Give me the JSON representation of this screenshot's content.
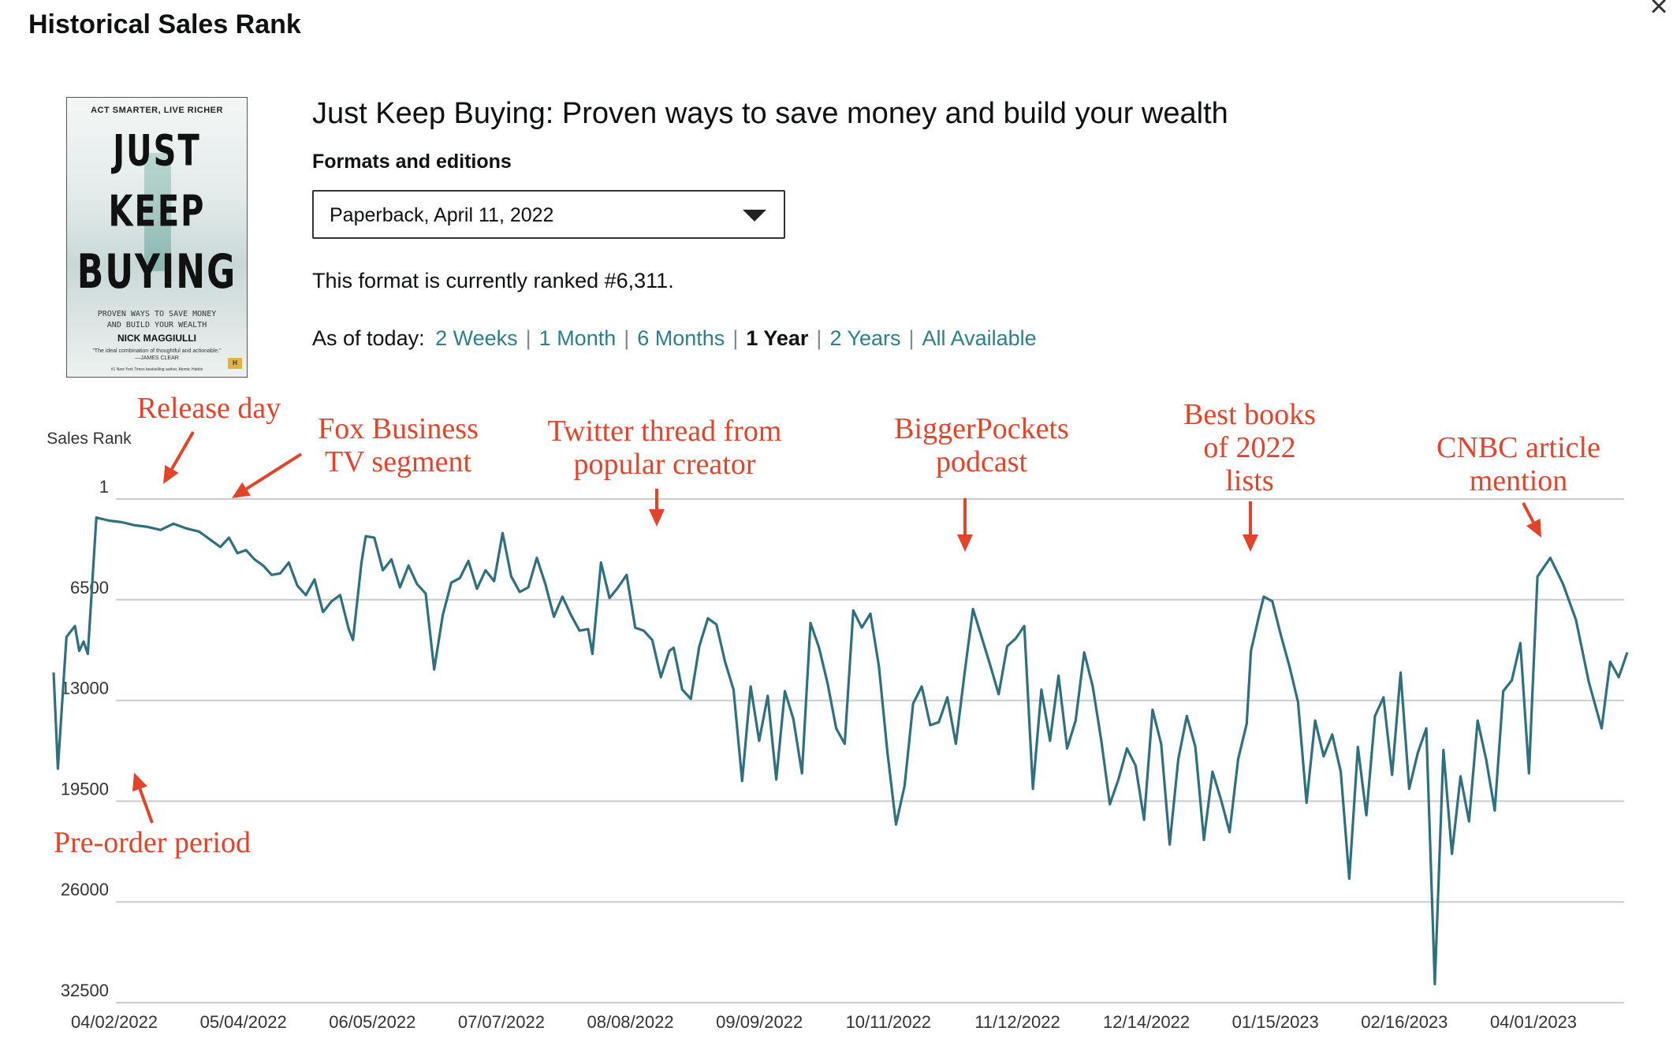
{
  "window": {
    "title": "Historical Sales Rank",
    "close_label": "×"
  },
  "book": {
    "title": "Just Keep Buying: Proven ways to save money and build your wealth",
    "cover": {
      "tagline": "ACT SMARTER, LIVE RICHER",
      "title_line1": "JUST",
      "title_line2": "KEEP",
      "title_line3": "BUYING",
      "subtitle_line1": "PROVEN WAYS TO SAVE MONEY",
      "subtitle_line2": "AND BUILD YOUR WEALTH",
      "author": "NICK MAGGIULLI",
      "quote": "\"The ideal combination of thoughtful and actionable.\"",
      "quote_author": "—JAMES CLEAR",
      "blurb": "#1 New York Times bestselling author, Atomic Habits",
      "logo": "H"
    }
  },
  "formats": {
    "label": "Formats and editions",
    "selected": "Paperback, April 11, 2022"
  },
  "rank_text": "This format is currently ranked #6,311.",
  "time_range": {
    "label": "As of today:",
    "options": [
      "2 Weeks",
      "1 Month",
      "6 Months",
      "1 Year",
      "2 Years",
      "All Available"
    ],
    "active": "1 Year"
  },
  "colors": {
    "line": "#2f6f7e",
    "annotation": "#e0452c",
    "link": "#2e7d8a",
    "grid": "#cccccc"
  },
  "chart_data": {
    "type": "line",
    "title": "",
    "ylabel": "Sales Rank",
    "xlabel": "",
    "y_inverted": true,
    "ylim": [
      1,
      32500
    ],
    "y_ticks": [
      "1",
      "6500",
      "13000",
      "19500",
      "26000",
      "32500"
    ],
    "x_ticks": [
      "04/02/2022",
      "05/04/2022",
      "06/05/2022",
      "07/07/2022",
      "08/08/2022",
      "09/09/2022",
      "10/11/2022",
      "11/12/2022",
      "12/14/2022",
      "01/15/2023",
      "02/16/2023",
      "04/01/2023"
    ],
    "x_range": [
      "2022-04-02",
      "2023-04-05"
    ],
    "grid": true,
    "series": [
      {
        "name": "",
        "points": [
          [
            "2022-04-02",
            11200
          ],
          [
            "2022-04-03",
            17400
          ],
          [
            "2022-04-05",
            8900
          ],
          [
            "2022-04-07",
            8200
          ],
          [
            "2022-04-08",
            9800
          ],
          [
            "2022-04-09",
            9200
          ],
          [
            "2022-04-10",
            10000
          ],
          [
            "2022-04-12",
            1200
          ],
          [
            "2022-04-15",
            1400
          ],
          [
            "2022-04-18",
            1500
          ],
          [
            "2022-04-21",
            1700
          ],
          [
            "2022-04-24",
            1800
          ],
          [
            "2022-04-27",
            2000
          ],
          [
            "2022-04-30",
            1600
          ],
          [
            "2022-05-03",
            1900
          ],
          [
            "2022-05-06",
            2100
          ],
          [
            "2022-05-09",
            2700
          ],
          [
            "2022-05-11",
            3100
          ],
          [
            "2022-05-13",
            2500
          ],
          [
            "2022-05-15",
            3500
          ],
          [
            "2022-05-17",
            3300
          ],
          [
            "2022-05-19",
            3900
          ],
          [
            "2022-05-21",
            4300
          ],
          [
            "2022-05-23",
            4900
          ],
          [
            "2022-05-25",
            4800
          ],
          [
            "2022-05-27",
            4100
          ],
          [
            "2022-05-29",
            5600
          ],
          [
            "2022-05-31",
            6200
          ],
          [
            "2022-06-02",
            5200
          ],
          [
            "2022-06-04",
            7300
          ],
          [
            "2022-06-06",
            6600
          ],
          [
            "2022-06-08",
            6200
          ],
          [
            "2022-06-10",
            8400
          ],
          [
            "2022-06-11",
            9100
          ],
          [
            "2022-06-13",
            4100
          ],
          [
            "2022-06-14",
            2400
          ],
          [
            "2022-06-16",
            2500
          ],
          [
            "2022-06-18",
            4600
          ],
          [
            "2022-06-20",
            3900
          ],
          [
            "2022-06-22",
            5700
          ],
          [
            "2022-06-24",
            4300
          ],
          [
            "2022-06-26",
            5500
          ],
          [
            "2022-06-28",
            6100
          ],
          [
            "2022-06-30",
            11000
          ],
          [
            "2022-07-02",
            7500
          ],
          [
            "2022-07-04",
            5400
          ],
          [
            "2022-07-06",
            5100
          ],
          [
            "2022-07-08",
            4000
          ],
          [
            "2022-07-10",
            5800
          ],
          [
            "2022-07-12",
            4600
          ],
          [
            "2022-07-14",
            5300
          ],
          [
            "2022-07-16",
            2200
          ],
          [
            "2022-07-18",
            5000
          ],
          [
            "2022-07-20",
            6000
          ],
          [
            "2022-07-22",
            5700
          ],
          [
            "2022-07-24",
            3800
          ],
          [
            "2022-07-26",
            5500
          ],
          [
            "2022-07-28",
            7600
          ],
          [
            "2022-07-30",
            6300
          ],
          [
            "2022-08-01",
            7500
          ],
          [
            "2022-08-03",
            8500
          ],
          [
            "2022-08-05",
            8400
          ],
          [
            "2022-08-06",
            10000
          ],
          [
            "2022-08-08",
            4100
          ],
          [
            "2022-08-10",
            6400
          ],
          [
            "2022-08-12",
            5700
          ],
          [
            "2022-08-14",
            4900
          ],
          [
            "2022-08-16",
            8300
          ],
          [
            "2022-08-18",
            8500
          ],
          [
            "2022-08-20",
            9100
          ],
          [
            "2022-08-22",
            11500
          ],
          [
            "2022-08-24",
            9800
          ],
          [
            "2022-08-25",
            9600
          ],
          [
            "2022-08-27",
            12300
          ],
          [
            "2022-08-29",
            12900
          ],
          [
            "2022-08-31",
            9500
          ],
          [
            "2022-09-02",
            7700
          ],
          [
            "2022-09-04",
            8100
          ],
          [
            "2022-09-06",
            10500
          ],
          [
            "2022-09-08",
            12300
          ],
          [
            "2022-09-10",
            18200
          ],
          [
            "2022-09-12",
            12100
          ],
          [
            "2022-09-14",
            15600
          ],
          [
            "2022-09-16",
            12700
          ],
          [
            "2022-09-18",
            18100
          ],
          [
            "2022-09-20",
            12400
          ],
          [
            "2022-09-22",
            14200
          ],
          [
            "2022-09-24",
            17700
          ],
          [
            "2022-09-26",
            8000
          ],
          [
            "2022-09-28",
            9600
          ],
          [
            "2022-09-30",
            11900
          ],
          [
            "2022-10-02",
            14800
          ],
          [
            "2022-10-04",
            15800
          ],
          [
            "2022-10-06",
            7200
          ],
          [
            "2022-10-08",
            8300
          ],
          [
            "2022-10-10",
            7400
          ],
          [
            "2022-10-12",
            10800
          ],
          [
            "2022-10-14",
            16400
          ],
          [
            "2022-10-16",
            21000
          ],
          [
            "2022-10-18",
            18500
          ],
          [
            "2022-10-20",
            13200
          ],
          [
            "2022-10-22",
            12100
          ],
          [
            "2022-10-24",
            14600
          ],
          [
            "2022-10-26",
            14400
          ],
          [
            "2022-10-28",
            12800
          ],
          [
            "2022-10-30",
            15800
          ],
          [
            "2022-11-01",
            11300
          ],
          [
            "2022-11-03",
            7100
          ],
          [
            "2022-11-05",
            8900
          ],
          [
            "2022-11-07",
            10700
          ],
          [
            "2022-11-09",
            12600
          ],
          [
            "2022-11-11",
            9500
          ],
          [
            "2022-11-13",
            9000
          ],
          [
            "2022-11-15",
            8200
          ],
          [
            "2022-11-17",
            18700
          ],
          [
            "2022-11-19",
            12300
          ],
          [
            "2022-11-21",
            15600
          ],
          [
            "2022-11-23",
            11400
          ],
          [
            "2022-11-25",
            16100
          ],
          [
            "2022-11-27",
            14300
          ],
          [
            "2022-11-29",
            9900
          ],
          [
            "2022-12-01",
            12100
          ],
          [
            "2022-12-03",
            15600
          ],
          [
            "2022-12-05",
            19700
          ],
          [
            "2022-12-07",
            18100
          ],
          [
            "2022-12-09",
            16100
          ],
          [
            "2022-12-11",
            17200
          ],
          [
            "2022-12-13",
            20700
          ],
          [
            "2022-12-15",
            13600
          ],
          [
            "2022-12-17",
            15800
          ],
          [
            "2022-12-19",
            22300
          ],
          [
            "2022-12-21",
            16800
          ],
          [
            "2022-12-23",
            14000
          ],
          [
            "2022-12-25",
            16000
          ],
          [
            "2022-12-27",
            22000
          ],
          [
            "2022-12-29",
            17600
          ],
          [
            "2022-12-31",
            19400
          ],
          [
            "2023-01-02",
            21500
          ],
          [
            "2023-01-04",
            16800
          ],
          [
            "2023-01-06",
            14500
          ],
          [
            "2023-01-07",
            9800
          ],
          [
            "2023-01-09",
            7400
          ],
          [
            "2023-01-10",
            6300
          ],
          [
            "2023-01-12",
            6600
          ],
          [
            "2023-01-14",
            8800
          ],
          [
            "2023-01-16",
            10800
          ],
          [
            "2023-01-18",
            13100
          ],
          [
            "2023-01-20",
            19600
          ],
          [
            "2023-01-22",
            14300
          ],
          [
            "2023-01-24",
            16600
          ],
          [
            "2023-01-26",
            15200
          ],
          [
            "2023-01-28",
            17600
          ],
          [
            "2023-01-30",
            24500
          ],
          [
            "2023-02-01",
            16000
          ],
          [
            "2023-02-03",
            20400
          ],
          [
            "2023-02-05",
            14000
          ],
          [
            "2023-02-07",
            12800
          ],
          [
            "2023-02-09",
            17800
          ],
          [
            "2023-02-11",
            11200
          ],
          [
            "2023-02-13",
            18700
          ],
          [
            "2023-02-15",
            16400
          ],
          [
            "2023-02-17",
            14800
          ],
          [
            "2023-02-19",
            31300
          ],
          [
            "2023-02-21",
            16200
          ],
          [
            "2023-02-23",
            22900
          ],
          [
            "2023-02-25",
            17900
          ],
          [
            "2023-02-27",
            20800
          ],
          [
            "2023-03-01",
            14300
          ],
          [
            "2023-03-03",
            16800
          ],
          [
            "2023-03-05",
            20100
          ],
          [
            "2023-03-07",
            12400
          ],
          [
            "2023-03-09",
            11700
          ],
          [
            "2023-03-11",
            9300
          ],
          [
            "2023-03-13",
            17700
          ],
          [
            "2023-03-15",
            5000
          ],
          [
            "2023-03-18",
            3800
          ],
          [
            "2023-03-21",
            5500
          ],
          [
            "2023-03-24",
            7800
          ],
          [
            "2023-03-27",
            11800
          ],
          [
            "2023-03-30",
            14800
          ],
          [
            "2023-04-01",
            10500
          ],
          [
            "2023-04-03",
            11500
          ],
          [
            "2023-04-05",
            9900
          ]
        ]
      }
    ],
    "annotations": [
      {
        "text": "Release day",
        "date": "2022-04-12",
        "rank": 1200
      },
      {
        "text": "Fox Business TV segment",
        "date": "2022-05-01",
        "rank": 1600
      },
      {
        "text": "Twitter thread from popular creator",
        "date": "2022-08-08",
        "rank": 4100
      },
      {
        "text": "BiggerPockets podcast",
        "date": "2022-11-03",
        "rank": 7100
      },
      {
        "text": "Best books of 2022 lists",
        "date": "2023-01-10",
        "rank": 6300
      },
      {
        "text": "CNBC article mention",
        "date": "2023-03-15",
        "rank": 5000
      },
      {
        "text": "Pre-order period",
        "date": "2022-04-03",
        "rank": 17400
      }
    ]
  }
}
